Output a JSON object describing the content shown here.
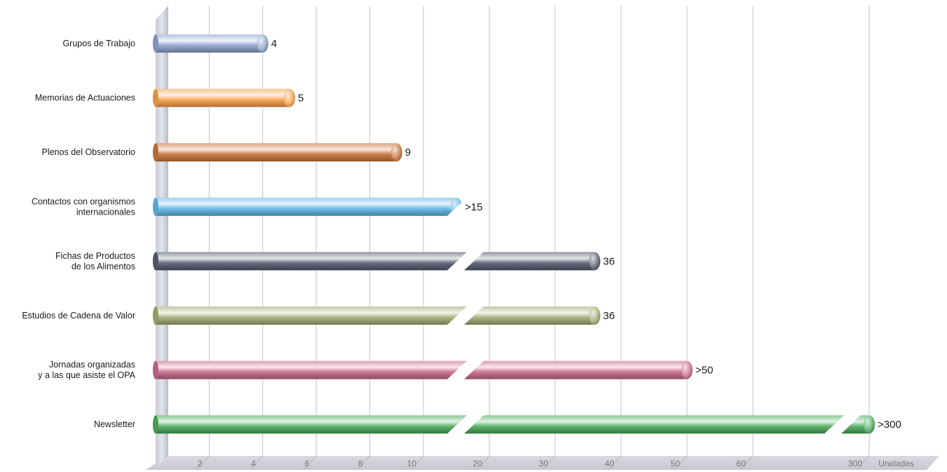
{
  "chart_data": {
    "type": "bar",
    "orientation": "horizontal",
    "axis_break": true,
    "categories": [
      [
        "Grupos de Trabajo"
      ],
      [
        "Memorias de Actuaciones"
      ],
      [
        "Plenos del Observatorio"
      ],
      [
        "Contactos con organismos",
        "internacionales"
      ],
      [
        "Fichas de Productos",
        "de los Alimentos"
      ],
      [
        "Estudios de Cadena de Valor"
      ],
      [
        "Jornadas organizadas",
        "y a las que asiste el OPA"
      ],
      [
        "Newsletter"
      ]
    ],
    "values": [
      4,
      5,
      9,
      15,
      36,
      36,
      50,
      300
    ],
    "value_labels": [
      "4",
      "5",
      "9",
      ">15",
      "36",
      "36",
      ">50",
      ">300"
    ],
    "colors": [
      "#8fa3cc",
      "#f6a24c",
      "#c9733a",
      "#63b6e8",
      "#555c70",
      "#a5ab72",
      "#c8698c",
      "#4caa5c"
    ],
    "x_ticks": [
      "2",
      "4",
      "6",
      "8",
      "10",
      "20",
      "30",
      "40",
      "50",
      "60",
      "300"
    ],
    "x_unit_label": "Unidades",
    "grid": true
  }
}
